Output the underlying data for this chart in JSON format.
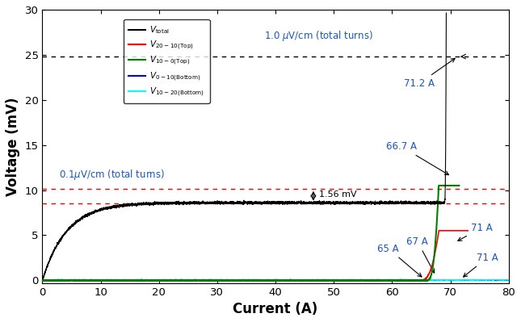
{
  "xlabel": "Current (A)",
  "ylabel": "Voltage (mV)",
  "xlim": [
    0,
    80
  ],
  "ylim": [
    -0.3,
    30
  ],
  "yticks": [
    0,
    5,
    10,
    15,
    20,
    25,
    30
  ],
  "xticks": [
    0,
    10,
    20,
    30,
    40,
    50,
    60,
    70,
    80
  ],
  "hline_black_y": 24.8,
  "hline_red_top_y": 10.15,
  "hline_red_bot_y": 8.55,
  "annot_color": "#1a55cc",
  "bg_color": "#ffffff",
  "vtotal_plateau": 8.6,
  "vtotal_tau": 4.2,
  "vtotal_quench_start": 69.0,
  "vtotal_quench_coeff": 800,
  "vtotal_quench_exp": 3.0,
  "vred_start": 65.0,
  "vred_coeff": 0.35,
  "vred_exp": 2.5,
  "vgreen_start": 66.0,
  "vgreen_coeff": 1.5,
  "vgreen_exp": 2.8,
  "vred_max": 5.5,
  "vgreen_max": 10.5
}
